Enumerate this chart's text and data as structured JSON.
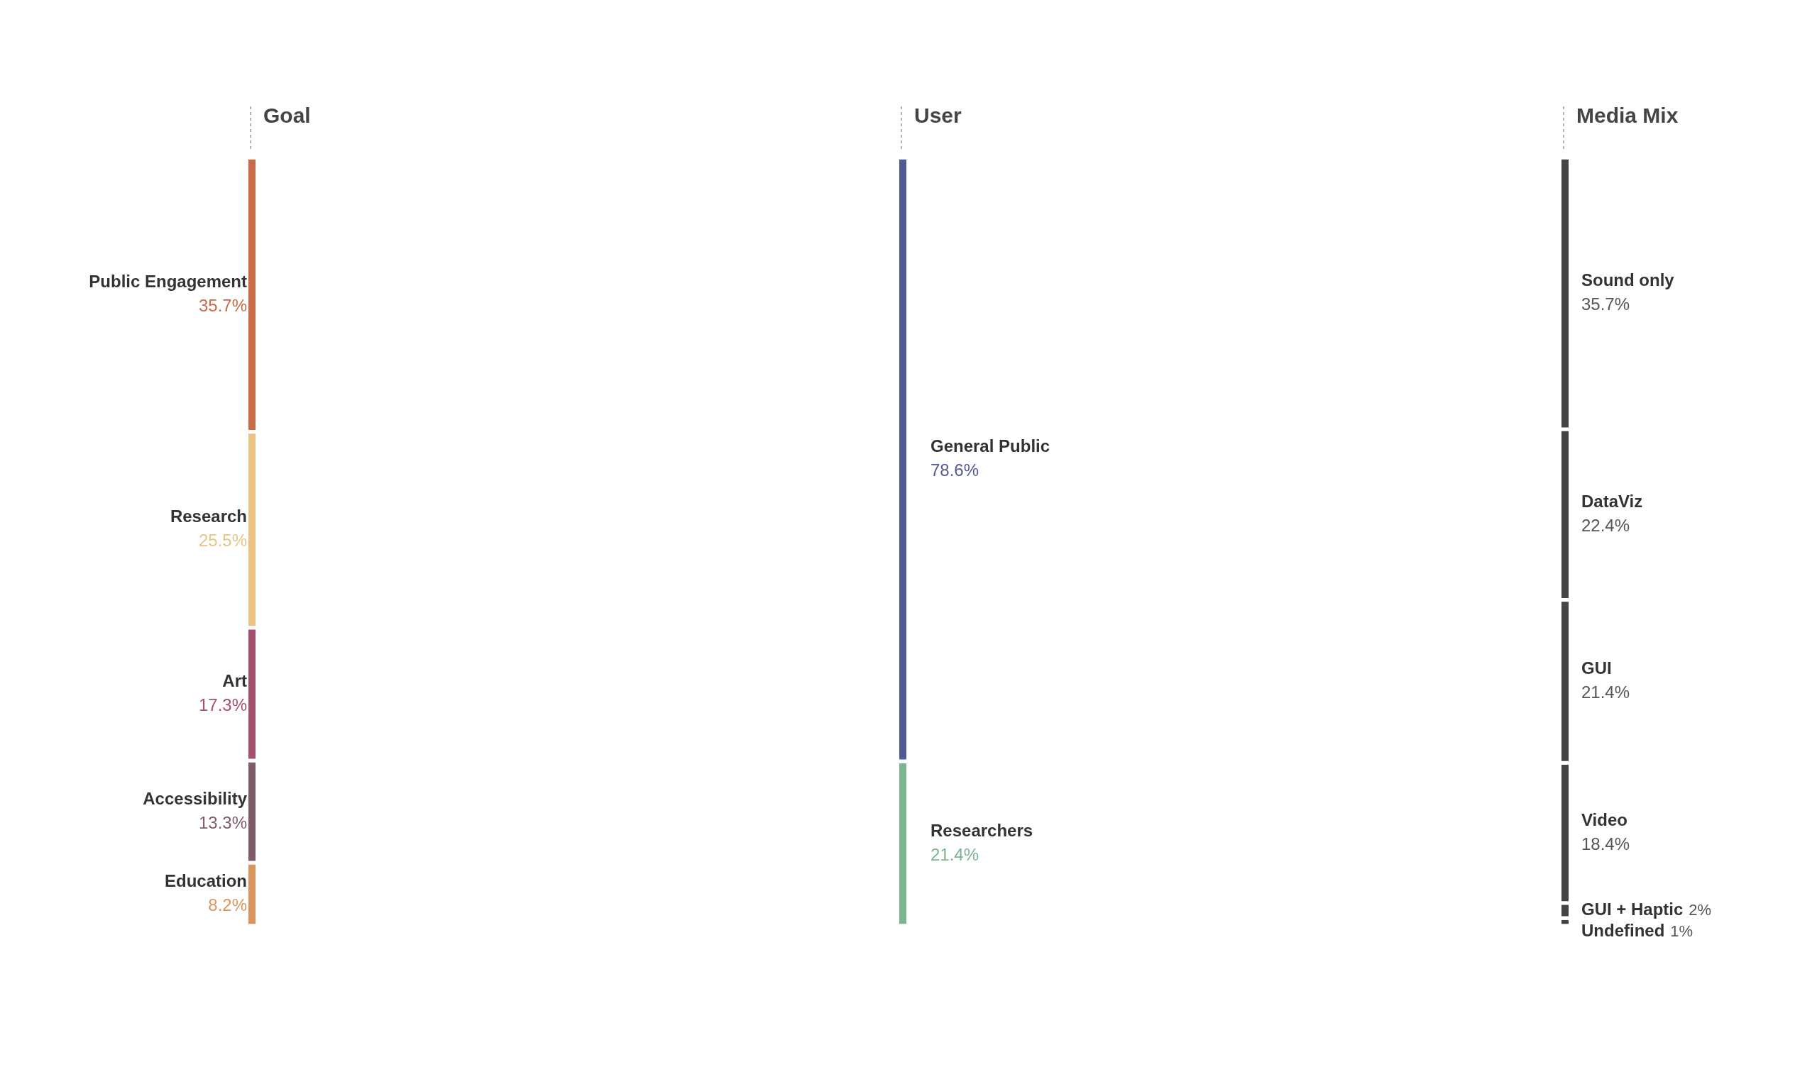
{
  "chart_data": [
    {
      "type": "other",
      "title": "Goal",
      "categories": [
        "Public Engagement",
        "Research",
        "Art",
        "Accessibility",
        "Education"
      ],
      "values": [
        35.7,
        25.5,
        17.3,
        13.3,
        8.2
      ],
      "value_labels": [
        "35.7%",
        "25.5%",
        "17.3%",
        "13.3%",
        "8.2%"
      ],
      "colors": [
        "#c96a49",
        "#e8c383",
        "#a54f71",
        "#7f5a6a",
        "#d9955e"
      ]
    },
    {
      "type": "other",
      "title": "User",
      "categories": [
        "General Public",
        "Researchers"
      ],
      "values": [
        78.6,
        21.4
      ],
      "value_labels": [
        "78.6%",
        "21.4%"
      ],
      "colors": [
        "#505b93",
        "#7ab58f"
      ]
    },
    {
      "type": "other",
      "title": "Media Mix",
      "categories": [
        "Sound only",
        "DataViz",
        "GUI",
        "Video",
        "GUI + Haptic",
        "Undefined"
      ],
      "values": [
        35.7,
        22.4,
        21.4,
        18.4,
        2,
        1
      ],
      "value_labels": [
        "35.7%",
        "22.4%",
        "21.4%",
        "18.4%",
        "2%",
        "1%"
      ],
      "colors": [
        "#444444",
        "#444444",
        "#444444",
        "#444444",
        "#444444",
        "#444444"
      ]
    }
  ]
}
